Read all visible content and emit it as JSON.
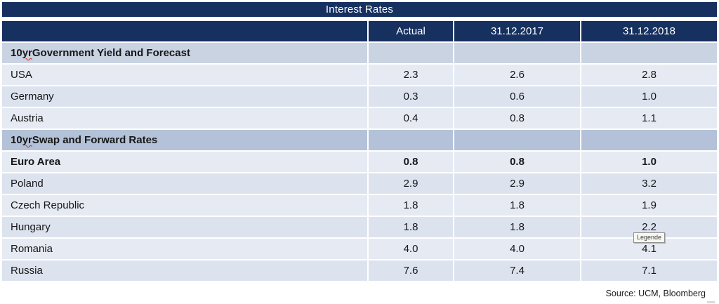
{
  "title": "Interest Rates",
  "header": {
    "columns": [
      "Actual",
      "31.12.2017",
      "31.12.2018"
    ]
  },
  "table": {
    "rows": [
      {
        "type": "section",
        "label": "10 yr Government Yield and Forecast",
        "spellcheck_word": "yr",
        "values": [
          "",
          "",
          ""
        ]
      },
      {
        "type": "data",
        "label": "USA",
        "values": [
          "2.3",
          "2.6",
          "2.8"
        ],
        "bold": false
      },
      {
        "type": "data",
        "label": "Germany",
        "values": [
          "0.3",
          "0.6",
          "1.0"
        ],
        "bold": false
      },
      {
        "type": "data",
        "label": "Austria",
        "values": [
          "0.4",
          "0.8",
          "1.1"
        ],
        "bold": false
      },
      {
        "type": "section",
        "label": "10 yr Swap and Forward Rates",
        "spellcheck_word": "yr",
        "values": [
          "",
          "",
          ""
        ]
      },
      {
        "type": "data",
        "label": "Euro Area",
        "values": [
          "0.8",
          "0.8",
          "1.0"
        ],
        "bold": true
      },
      {
        "type": "data",
        "label": "Poland",
        "values": [
          "2.9",
          "2.9",
          "3.2"
        ],
        "bold": false
      },
      {
        "type": "data",
        "label": "Czech Republic",
        "values": [
          "1.8",
          "1.8",
          "1.9"
        ],
        "bold": false
      },
      {
        "type": "data",
        "label": "Hungary",
        "values": [
          "1.8",
          "1.8",
          "2.2"
        ],
        "bold": false
      },
      {
        "type": "data",
        "label": "Romania",
        "values": [
          "4.0",
          "4.0",
          "4.1"
        ],
        "bold": false
      },
      {
        "type": "data",
        "label": "Russia",
        "values": [
          "7.6",
          "7.4",
          "7.1"
        ],
        "bold": false
      }
    ]
  },
  "tooltip": {
    "text": "Legende"
  },
  "source": "Source: UCM, Bloomberg",
  "colors": {
    "navy": "#16305F",
    "section_primary_bg": "#C9D3E2",
    "section_secondary_bg": "#B3C2D8",
    "row_bg_light": "#E5EAF3",
    "row_bg_dark": "#DCE3EF",
    "spellcheck_red": "#CC2A1F"
  }
}
